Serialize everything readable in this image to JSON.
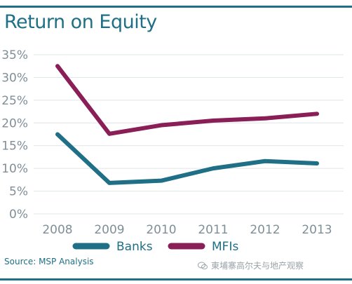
{
  "chart_data": {
    "type": "line",
    "title": "Return on Equity",
    "categories": [
      "2008",
      "2009",
      "2010",
      "2011",
      "2012",
      "2013"
    ],
    "series": [
      {
        "name": "Banks",
        "values": [
          17.5,
          6.8,
          7.3,
          10.0,
          11.6,
          11.1
        ],
        "color": "#1f6f86"
      },
      {
        "name": "MFIs",
        "values": [
          32.5,
          17.6,
          19.5,
          20.5,
          21.0,
          22.0
        ],
        "color": "#8a1f57"
      }
    ],
    "ylim": [
      0,
      35
    ],
    "yticks": [
      "0%",
      "5%",
      "10%",
      "15%",
      "20%",
      "25%",
      "30%",
      "35%"
    ],
    "grid": true,
    "legend": "bottom",
    "xlabel": "",
    "ylabel": ""
  },
  "source": "Source: MSP Analysis",
  "watermark": "東埔寨高尔夫与地产观察"
}
